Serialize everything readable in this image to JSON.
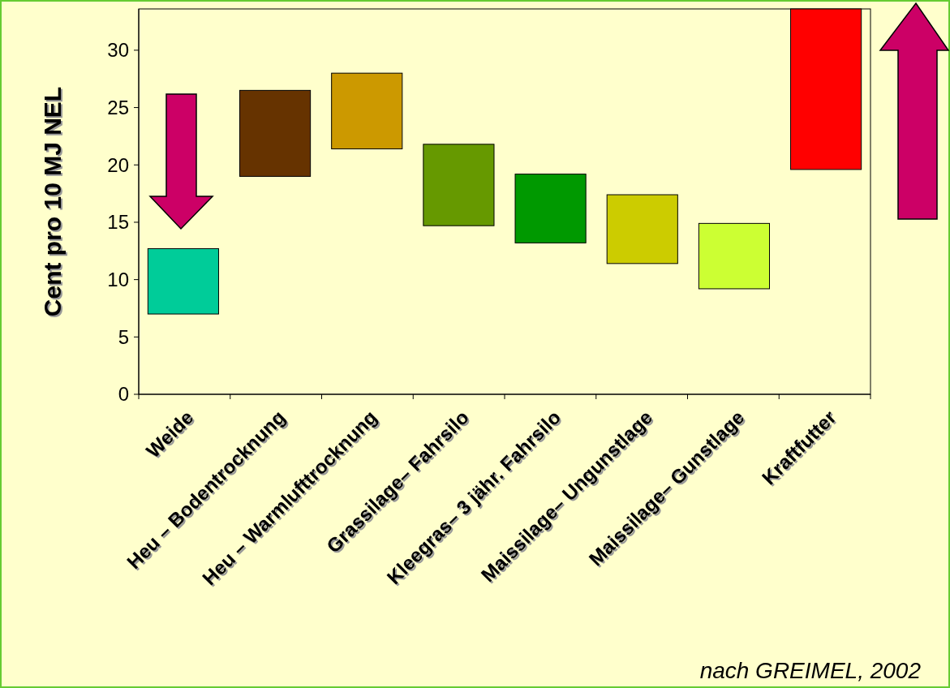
{
  "chart_data": {
    "type": "bar",
    "ylabel": "Cent pro 10 MJ NEL",
    "categories": [
      "Weide",
      "Heu –  Bodentrocknung",
      "Heu –  Warmlufttrocknung",
      "Grassilage– Fahrsilo",
      "Kleegras– 3 jähr. Fahrsilo",
      "Maissilage– Ungunstlage",
      "Maissilage– Gunstlage",
      "Kraftfutter"
    ],
    "base": [
      7,
      19,
      21.4,
      14.7,
      13.2,
      11.4,
      9.2,
      19.6
    ],
    "values": [
      5.7,
      7.5,
      6.6,
      7.1,
      6,
      6,
      5.7,
      14
    ],
    "colors": [
      "#00cc99",
      "#663300",
      "#cc9900",
      "#669900",
      "#009900",
      "#cccc00",
      "#ccff33",
      "#ff0000"
    ],
    "ylim": [
      0,
      33.6
    ],
    "yticks": [
      0,
      5,
      10,
      15,
      20,
      25,
      30
    ],
    "annotations": [
      "nach GREIMEL, 2002"
    ]
  }
}
